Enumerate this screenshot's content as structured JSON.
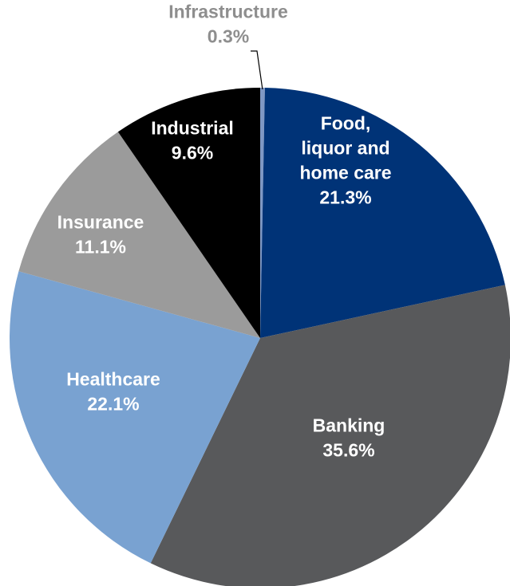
{
  "chart_data": {
    "type": "pie",
    "title": "",
    "direction": "clockwise",
    "start": "top",
    "slices": [
      {
        "name": "Infrastructure",
        "lines": [
          "Infrastructure",
          "0.3%"
        ],
        "value": 0.3,
        "color": "#7f98c4",
        "label_color": "#8e8e8e"
      },
      {
        "name": "Food, liquor and home care",
        "lines": [
          "Food,",
          "liquor and",
          "home care",
          "21.3%"
        ],
        "value": 21.3,
        "color": "#003377",
        "label_color": "#ffffff"
      },
      {
        "name": "Banking",
        "lines": [
          "Banking",
          "35.6%"
        ],
        "value": 35.6,
        "color": "#58595b",
        "label_color": "#ffffff"
      },
      {
        "name": "Healthcare",
        "lines": [
          "Healthcare",
          "22.1%"
        ],
        "value": 22.1,
        "color": "#79a2d1",
        "label_color": "#ffffff"
      },
      {
        "name": "Insurance",
        "lines": [
          "Insurance",
          "11.1%"
        ],
        "value": 11.1,
        "color": "#9b9b9b",
        "label_color": "#ffffff"
      },
      {
        "name": "Industrial",
        "lines": [
          "Industrial",
          "9.6%"
        ],
        "value": 9.6,
        "color": "#000000",
        "label_color": "#ffffff"
      }
    ]
  }
}
